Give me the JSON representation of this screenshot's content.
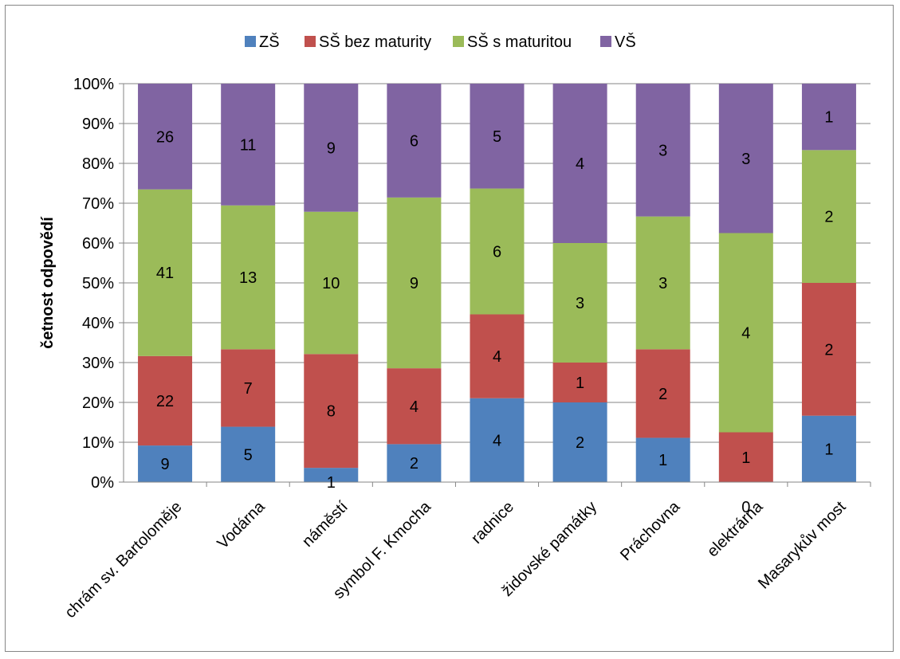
{
  "chart_data": {
    "type": "bar",
    "stacked": "percent",
    "ylabel": "četnost odpovědí",
    "xlabel": "",
    "ylim": [
      0,
      100
    ],
    "y_ticks": [
      "0%",
      "10%",
      "20%",
      "30%",
      "40%",
      "50%",
      "60%",
      "70%",
      "80%",
      "90%",
      "100%"
    ],
    "grid": true,
    "legend_position": "top",
    "categories": [
      "chrám sv. Bartoloměje",
      "Vodárna",
      "náměstí",
      "symbol F. Kmocha",
      "radnice",
      "židovské památky",
      "Práchovna",
      "elektrárna",
      "Masarykův most"
    ],
    "series": [
      {
        "name": "ZŠ",
        "color": "#4f81bd",
        "values": [
          9,
          5,
          1,
          2,
          4,
          2,
          1,
          0,
          1
        ]
      },
      {
        "name": "SŠ bez maturity",
        "color": "#c0504d",
        "values": [
          22,
          7,
          8,
          4,
          4,
          1,
          2,
          1,
          2
        ]
      },
      {
        "name": "SŠ s maturitou",
        "color": "#9bbb59",
        "values": [
          41,
          13,
          10,
          9,
          6,
          3,
          3,
          4,
          2
        ]
      },
      {
        "name": "VŠ",
        "color": "#8064a2",
        "values": [
          26,
          11,
          9,
          6,
          5,
          4,
          3,
          3,
          1
        ]
      }
    ]
  }
}
